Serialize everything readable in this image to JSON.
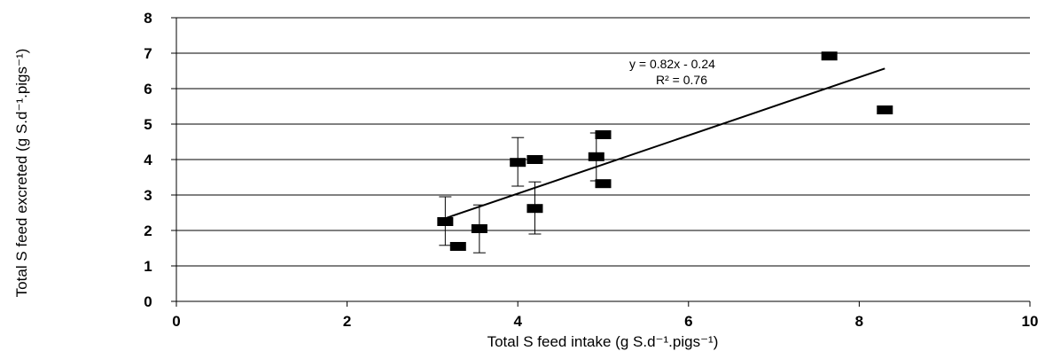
{
  "chart_data": {
    "type": "scatter",
    "xlabel": "Total S feed intake (g S.d⁻¹.pigs⁻¹)",
    "ylabel": "Total S feed excreted (g S.d⁻¹.pigs⁻¹)",
    "xlim": [
      0,
      10
    ],
    "ylim": [
      0,
      8
    ],
    "x_ticks": [
      "0",
      "2",
      "4",
      "6",
      "8",
      "10"
    ],
    "y_ticks": [
      "0",
      "1",
      "2",
      "3",
      "4",
      "5",
      "6",
      "7",
      "8"
    ],
    "grid": "horizontal",
    "marker": "filled-rectangle",
    "marker_color": "#000000",
    "points": [
      {
        "x": 3.15,
        "y": 2.25,
        "err_low": 1.58,
        "err_high": 2.95
      },
      {
        "x": 3.3,
        "y": 1.55
      },
      {
        "x": 3.55,
        "y": 2.05,
        "err_low": 1.37,
        "err_high": 2.72
      },
      {
        "x": 4.0,
        "y": 3.92,
        "err_low": 3.25,
        "err_high": 4.62
      },
      {
        "x": 4.2,
        "y": 4.0
      },
      {
        "x": 4.2,
        "y": 2.62,
        "err_low": 1.9,
        "err_high": 3.37
      },
      {
        "x": 4.92,
        "y": 4.08,
        "err_low": 3.4,
        "err_high": 4.75
      },
      {
        "x": 5.0,
        "y": 4.7
      },
      {
        "x": 5.0,
        "y": 3.32
      },
      {
        "x": 7.65,
        "y": 6.92
      },
      {
        "x": 8.3,
        "y": 5.4
      }
    ],
    "trendline": {
      "x_start": 3.15,
      "x_end": 8.3,
      "slope": 0.82,
      "intercept": -0.24,
      "equation": "y = 0.82x - 0.24",
      "r_squared": "R² = 0.76"
    }
  }
}
